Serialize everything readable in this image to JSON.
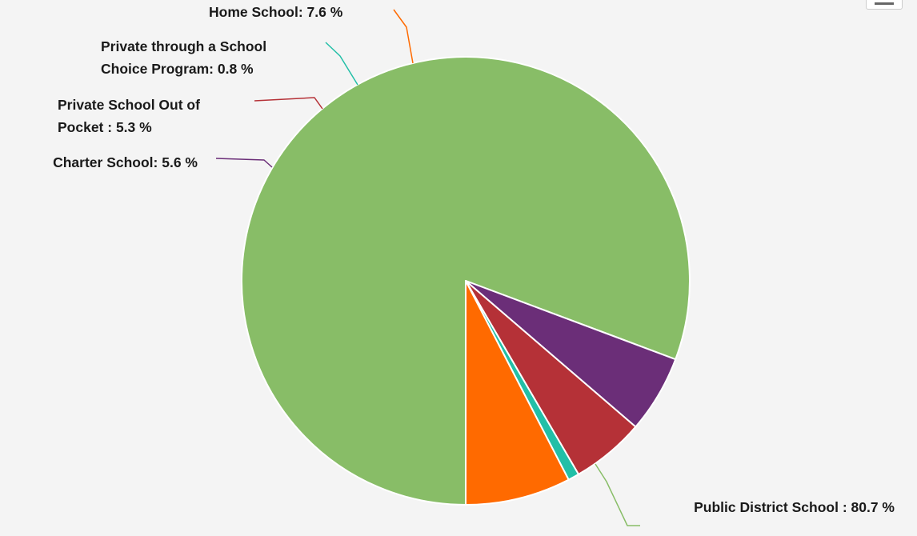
{
  "chart_data": {
    "type": "pie",
    "slices": [
      {
        "label": "Public District School",
        "display": "Public District School : 80.7 %",
        "value": 80.7,
        "color": "#88bd67"
      },
      {
        "label": "Charter School",
        "display": "Charter School: 5.6 %",
        "value": 5.6,
        "color": "#6b2e78"
      },
      {
        "label": "Private School Out of Pocket",
        "display": [
          "Private School Out of",
          "Pocket : 5.3 %"
        ],
        "value": 5.3,
        "color": "#b53137"
      },
      {
        "label": "Private through a School Choice Program",
        "display": [
          "Private through a School",
          "Choice Program: 0.8 %"
        ],
        "value": 0.8,
        "color": "#22bfa7"
      },
      {
        "label": "Home School",
        "display": "Home School: 7.6 %",
        "value": 7.6,
        "color": "#ff6a00"
      }
    ]
  },
  "menu": {
    "icon": "menu-icon"
  }
}
